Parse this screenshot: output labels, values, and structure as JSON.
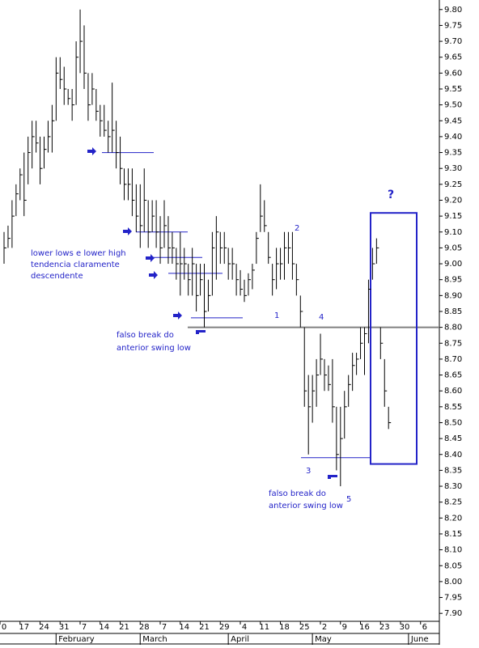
{
  "chart_data": {
    "type": "ohlc",
    "color": "#000000",
    "annotation_color": "#2323c8",
    "ylim": [
      7.875,
      9.83
    ],
    "yticks": [
      {
        "value": 9.8,
        "label": "9.80"
      },
      {
        "value": 9.75,
        "label": "9.75"
      },
      {
        "value": 9.7,
        "label": "9.70"
      },
      {
        "value": 9.65,
        "label": "9.65"
      },
      {
        "value": 9.6,
        "label": "9.60"
      },
      {
        "value": 9.55,
        "label": "9.55"
      },
      {
        "value": 9.5,
        "label": "9.50"
      },
      {
        "value": 9.45,
        "label": "9.45"
      },
      {
        "value": 9.4,
        "label": "9.40"
      },
      {
        "value": 9.35,
        "label": "9.35"
      },
      {
        "value": 9.3,
        "label": "9.30"
      },
      {
        "value": 9.25,
        "label": "9.25"
      },
      {
        "value": 9.2,
        "label": "9.20"
      },
      {
        "value": 9.15,
        "label": "9.15"
      },
      {
        "value": 9.1,
        "label": "9.10"
      },
      {
        "value": 9.05,
        "label": "9.05"
      },
      {
        "value": 9,
        "label": "9.00"
      },
      {
        "value": 8.95,
        "label": "8.95"
      },
      {
        "value": 8.9,
        "label": "8.90"
      },
      {
        "value": 8.85,
        "label": "8.85"
      },
      {
        "value": 8.8,
        "label": "8.80"
      },
      {
        "value": 8.75,
        "label": "8.75"
      },
      {
        "value": 8.7,
        "label": "8.70"
      },
      {
        "value": 8.65,
        "label": "8.65"
      },
      {
        "value": 8.6,
        "label": "8.60"
      },
      {
        "value": 8.55,
        "label": "8.55"
      },
      {
        "value": 8.5,
        "label": "8.50"
      },
      {
        "value": 8.45,
        "label": "8.45"
      },
      {
        "value": 8.4,
        "label": "8.40"
      },
      {
        "value": 8.35,
        "label": "8.35"
      },
      {
        "value": 8.3,
        "label": "8.30"
      },
      {
        "value": 8.25,
        "label": "8.25"
      },
      {
        "value": 8.2,
        "label": "8.20"
      },
      {
        "value": 8.15,
        "label": "8.15"
      },
      {
        "value": 8.1,
        "label": "8.10"
      },
      {
        "value": 8.05,
        "label": "8.05"
      },
      {
        "value": 8,
        "label": "8.00"
      },
      {
        "value": 7.95,
        "label": "7.95"
      },
      {
        "value": 7.9,
        "label": "7.90"
      }
    ],
    "categories": [
      "0",
      null,
      null,
      null,
      null,
      "17",
      null,
      null,
      null,
      null,
      "24",
      null,
      null,
      null,
      null,
      "31",
      null,
      null,
      null,
      null,
      "7",
      null,
      null,
      null,
      null,
      "14",
      null,
      null,
      null,
      null,
      "21",
      null,
      null,
      null,
      null,
      "28",
      null,
      null,
      null,
      null,
      "7",
      null,
      null,
      null,
      null,
      "14",
      null,
      null,
      null,
      null,
      "21",
      null,
      null,
      null,
      null,
      "29",
      null,
      null,
      null,
      null,
      "4",
      null,
      null,
      null,
      null,
      "11",
      null,
      null,
      null,
      null,
      "18",
      null,
      null,
      null,
      null,
      "25",
      null,
      null,
      null,
      null,
      "2",
      null,
      null,
      null,
      null,
      "9",
      null,
      null,
      null,
      null,
      "16",
      null,
      null,
      null,
      null,
      "23",
      null,
      null,
      null,
      null,
      "30",
      null,
      null,
      null,
      null,
      "6",
      null
    ],
    "months": [
      null,
      null,
      null,
      null,
      null,
      null,
      null,
      null,
      null,
      null,
      null,
      null,
      null,
      null,
      "February",
      null,
      null,
      null,
      null,
      null,
      null,
      null,
      null,
      null,
      null,
      null,
      null,
      null,
      null,
      null,
      null,
      null,
      null,
      null,
      null,
      "March",
      null,
      null,
      null,
      null,
      null,
      null,
      null,
      null,
      null,
      null,
      null,
      null,
      null,
      null,
      null,
      null,
      null,
      null,
      null,
      null,
      null,
      "April",
      null,
      null,
      null,
      null,
      null,
      null,
      null,
      null,
      null,
      null,
      null,
      null,
      null,
      null,
      null,
      null,
      null,
      null,
      null,
      null,
      "May",
      null,
      null,
      null,
      null,
      null,
      null,
      null,
      null,
      null,
      null,
      null,
      null,
      null,
      null,
      null,
      null,
      null,
      null,
      null,
      null,
      null,
      null,
      null,
      "June",
      null,
      null,
      null,
      null
    ],
    "high": [
      9.1,
      9.12,
      9.2,
      9.25,
      9.3,
      9.35,
      9.4,
      9.45,
      9.45,
      9.4,
      9.4,
      9.45,
      9.5,
      9.65,
      9.65,
      9.62,
      9.55,
      9.55,
      9.7,
      9.8,
      9.75,
      9.6,
      9.6,
      9.55,
      9.5,
      9.5,
      9.45,
      9.57,
      9.45,
      9.4,
      9.3,
      9.3,
      9.3,
      9.25,
      9.25,
      9.3,
      9.2,
      9.2,
      9.2,
      9.15,
      9.2,
      9.15,
      9.1,
      9.05,
      9.1,
      9.05,
      9.0,
      9.05,
      9.0,
      9.0,
      9.0,
      8.95,
      9.1,
      9.15,
      9.1,
      9.1,
      9.05,
      9.05,
      9.0,
      8.98,
      8.95,
      8.97,
      9.0,
      9.1,
      9.25,
      9.2,
      9.1,
      9.0,
      9.05,
      9.05,
      9.1,
      9.1,
      9.1,
      9.0,
      8.9,
      8.8,
      8.65,
      8.65,
      8.7,
      8.78,
      8.7,
      8.68,
      8.7,
      8.55,
      8.55,
      8.6,
      8.65,
      8.72,
      8.72,
      8.8,
      8.8,
      8.95,
      9.05,
      9.08,
      8.8,
      8.7,
      8.55,
      null,
      null,
      null,
      null,
      null,
      null,
      null,
      null,
      null,
      null
    ],
    "low": [
      9.0,
      9.05,
      9.05,
      9.15,
      9.2,
      9.15,
      9.25,
      9.3,
      9.35,
      9.25,
      9.3,
      9.35,
      9.35,
      9.45,
      9.55,
      9.5,
      9.5,
      9.45,
      9.5,
      9.6,
      9.55,
      9.45,
      9.5,
      9.45,
      9.4,
      9.4,
      9.35,
      9.35,
      9.3,
      9.25,
      9.2,
      9.2,
      9.15,
      9.1,
      9.05,
      9.1,
      9.05,
      9.1,
      9.05,
      9.0,
      9.05,
      9.0,
      9.0,
      8.95,
      8.9,
      8.95,
      8.9,
      8.9,
      8.85,
      8.9,
      8.8,
      8.85,
      8.9,
      8.95,
      9.0,
      9.0,
      8.95,
      8.95,
      8.9,
      8.9,
      8.88,
      8.9,
      8.92,
      9.0,
      9.1,
      9.1,
      9.0,
      8.9,
      8.92,
      8.95,
      8.95,
      9.0,
      8.95,
      8.9,
      8.8,
      8.55,
      8.4,
      8.5,
      8.55,
      8.65,
      8.6,
      8.6,
      8.5,
      8.35,
      8.3,
      8.45,
      8.55,
      8.6,
      8.65,
      8.7,
      8.65,
      8.75,
      8.95,
      9.0,
      8.7,
      8.55,
      8.48,
      null,
      null,
      null,
      null,
      null,
      null,
      null,
      null,
      null,
      null
    ],
    "close": [
      9.05,
      9.08,
      9.15,
      9.22,
      9.28,
      9.2,
      9.35,
      9.4,
      9.38,
      9.3,
      9.36,
      9.4,
      9.45,
      9.6,
      9.58,
      9.55,
      9.52,
      9.5,
      9.65,
      9.7,
      9.6,
      9.5,
      9.55,
      9.48,
      9.45,
      9.42,
      9.4,
      9.42,
      9.35,
      9.3,
      9.25,
      9.25,
      9.2,
      9.15,
      9.12,
      9.2,
      9.1,
      9.15,
      9.1,
      9.05,
      9.12,
      9.05,
      9.05,
      9.0,
      9.0,
      9.0,
      8.95,
      9.0,
      8.9,
      8.95,
      8.85,
      8.9,
      9.05,
      9.1,
      9.05,
      9.05,
      9.0,
      9.0,
      8.95,
      8.92,
      8.9,
      8.95,
      8.98,
      9.08,
      9.15,
      9.12,
      9.02,
      8.95,
      9.0,
      9.0,
      9.05,
      9.05,
      9.0,
      8.95,
      8.85,
      8.6,
      8.55,
      8.6,
      8.65,
      8.7,
      8.65,
      8.62,
      8.55,
      8.4,
      8.45,
      8.55,
      8.62,
      8.68,
      8.7,
      8.75,
      8.78,
      8.92,
      9.0,
      9.05,
      8.75,
      8.6,
      8.5,
      null,
      null,
      null,
      null,
      null,
      null,
      null,
      null,
      null,
      null
    ],
    "levels": [
      9.35,
      9.1,
      9.02,
      8.97,
      8.83,
      8.39
    ],
    "reference_line": 8.8,
    "box": {
      "top": 9.16,
      "bottom": 8.37
    },
    "annotations": [
      "lower lows e lower high",
      "tendencia claramente",
      "descendente",
      "falso break do",
      "anterior swing low",
      "falso break do",
      "anterior swing low",
      "1",
      "2",
      "3",
      "4",
      "5",
      "?"
    ]
  }
}
